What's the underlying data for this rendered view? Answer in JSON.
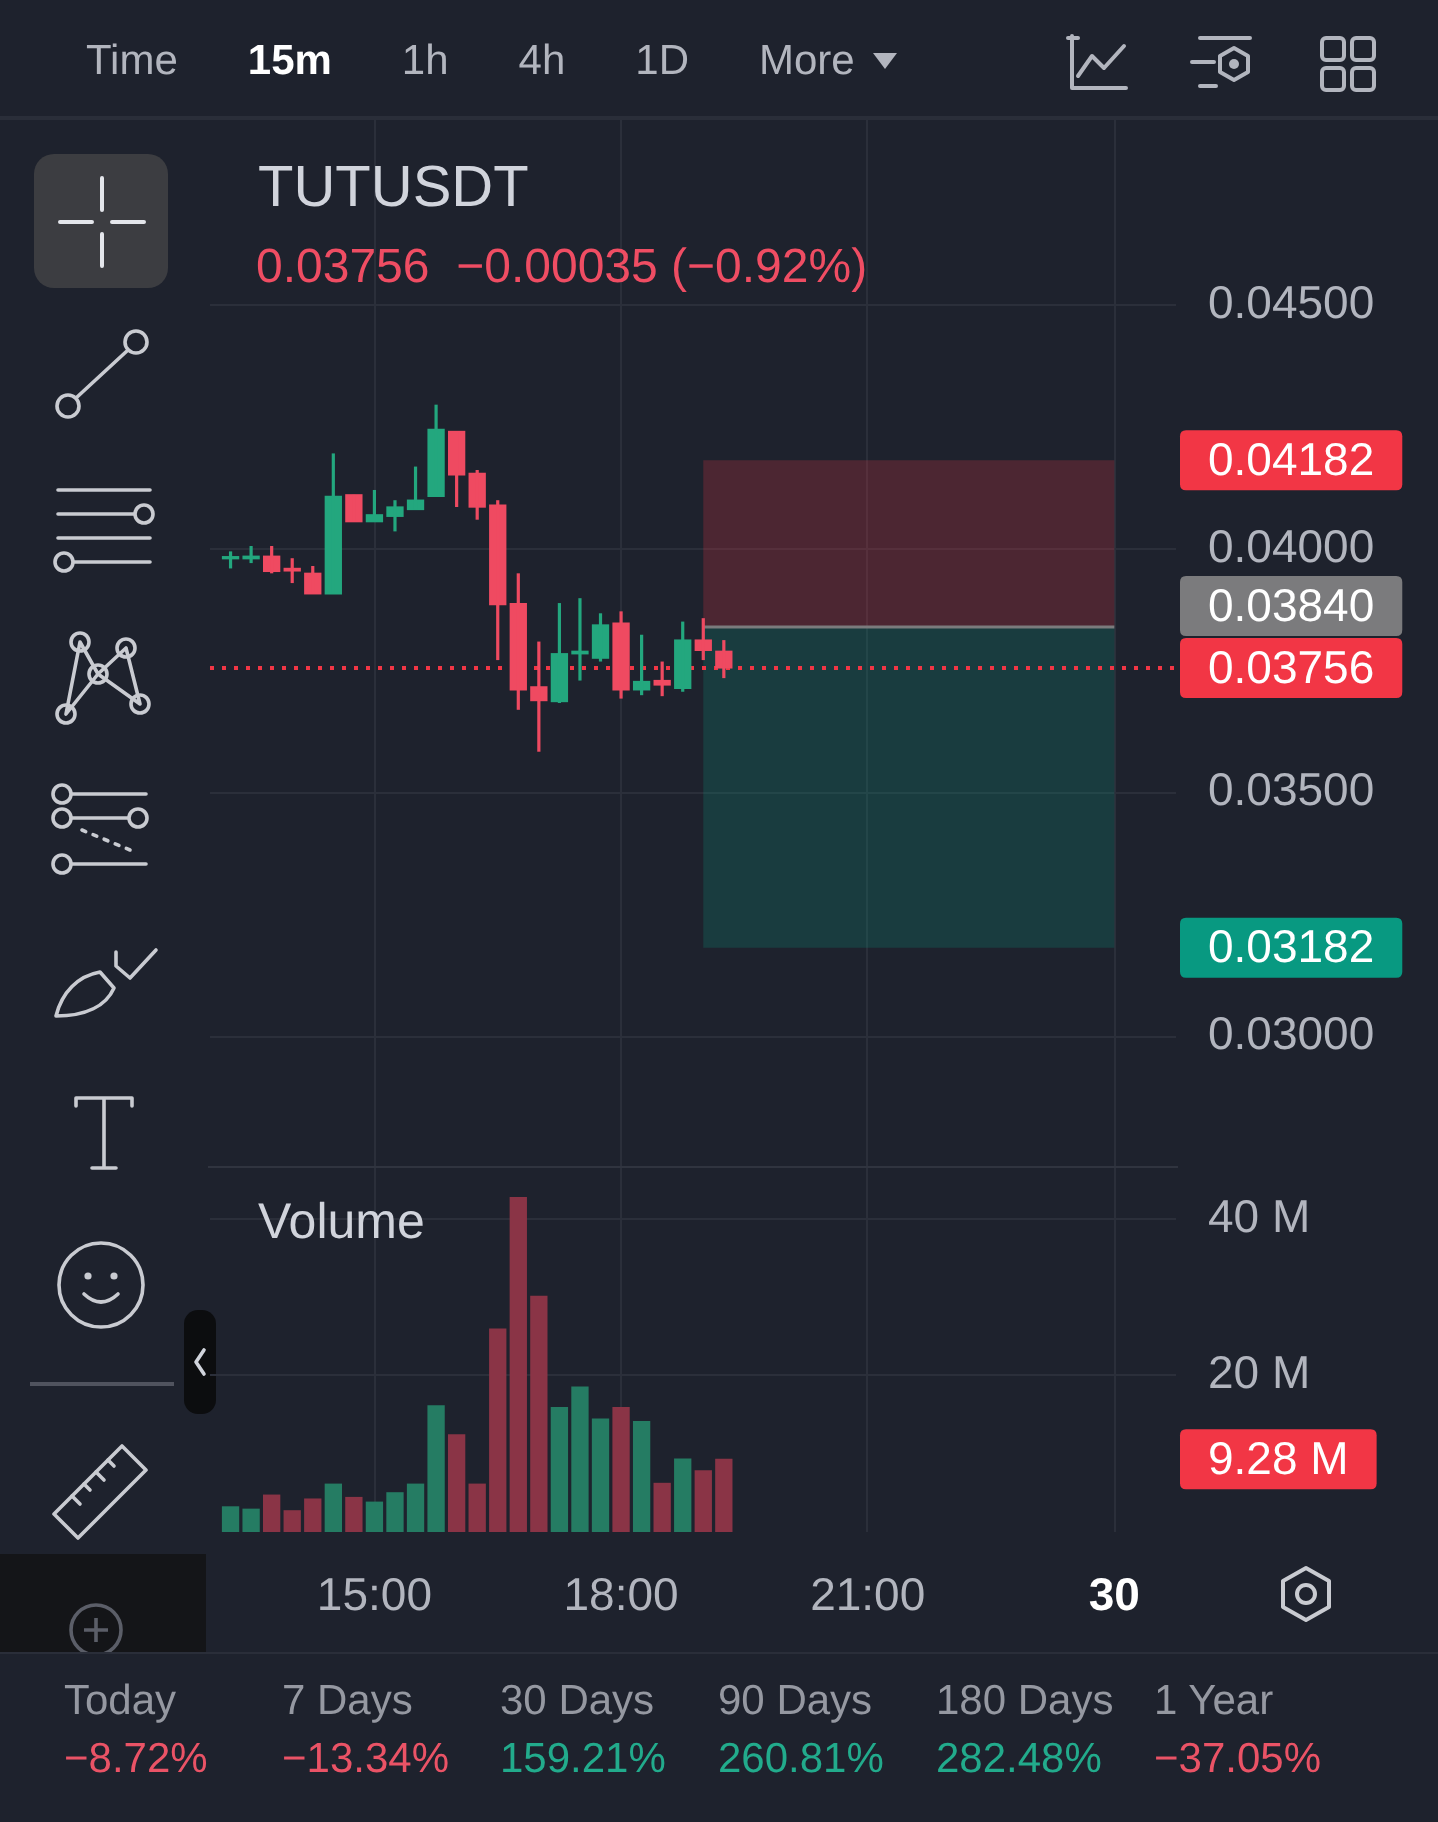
{
  "chart_data": [
    {
      "type": "other",
      "annotations": [
        "Time",
        "15m",
        "1h",
        "4h",
        "1D",
        "More"
      ]
    },
    {
      "type": "candlestick",
      "title": "TUTUSDT",
      "subtitle": "0.03756  −0.00035 (−0.92%)",
      "categories": [
        null,
        null,
        null,
        null,
        null,
        null,
        null,
        null,
        null,
        null,
        null,
        null,
        null,
        null,
        null,
        null,
        null,
        null,
        null,
        null,
        null,
        null,
        null,
        null,
        null,
        null,
        null,
        null,
        null,
        null,
        null,
        null,
        null,
        null,
        null,
        null,
        null,
        null,
        null,
        null,
        null,
        null,
        null,
        null,
        null,
        null,
        null,
        null
      ],
      "ohlc": [
        null,
        [
          0.0398,
          0.03995,
          0.0396,
          0.03982
        ],
        [
          0.0398,
          0.04006,
          0.03971,
          0.03985
        ],
        [
          0.03985,
          0.04006,
          0.0395,
          0.03954
        ],
        [
          0.0396,
          0.03981,
          0.0393,
          0.03955
        ],
        [
          0.0395,
          0.03965,
          0.03908,
          0.03908
        ],
        [
          0.03908,
          0.04196,
          0.03908,
          0.04108
        ],
        [
          0.04111,
          0.04111,
          0.04056,
          0.04056
        ],
        [
          0.04056,
          0.04121,
          0.04056,
          0.0407
        ],
        [
          0.04067,
          0.041,
          0.04036,
          0.04086
        ],
        [
          0.04081,
          0.04169,
          0.04081,
          0.041
        ],
        [
          0.04108,
          0.04296,
          0.04108,
          0.04245
        ],
        [
          0.04241,
          0.04241,
          0.04086,
          0.04152
        ],
        [
          0.04155,
          0.04162,
          0.0406,
          0.04086
        ],
        [
          0.0409,
          0.041,
          0.03772,
          0.03886
        ],
        [
          0.03888,
          0.0395,
          0.0367,
          0.03711
        ],
        [
          0.03717,
          0.0381,
          0.03584,
          0.03689
        ],
        [
          0.03687,
          0.03889,
          0.03684,
          0.03785
        ],
        [
          0.03785,
          0.03899,
          0.0373,
          0.0379
        ],
        [
          0.03776,
          0.03868,
          0.03769,
          0.03844
        ],
        [
          0.03848,
          0.03872,
          0.03693,
          0.03711
        ],
        [
          0.03711,
          0.03824,
          0.037,
          0.03728
        ],
        [
          0.0373,
          0.03769,
          0.03698,
          0.03721
        ],
        [
          0.03714,
          0.03851,
          0.03707,
          0.03813
        ],
        [
          0.03813,
          0.03858,
          0.03772,
          0.03792
        ],
        [
          0.0379,
          0.03813,
          0.03735,
          0.03756
        ],
        null,
        null,
        null,
        null,
        null,
        null,
        null,
        null,
        null,
        null,
        null,
        null,
        null,
        null,
        null,
        null,
        null,
        null,
        null,
        null,
        null,
        null
      ],
      "colors": [
        null,
        "#23a77e",
        "#23a77e",
        "#ef4a61",
        "#ef4a61",
        "#ef4a61",
        "#23a77e",
        "#ef4a61",
        "#23a77e",
        "#23a77e",
        "#23a77e",
        "#23a77e",
        "#ef4a61",
        "#ef4a61",
        "#ef4a61",
        "#ef4a61",
        "#ef4a61",
        "#23a77e",
        "#23a77e",
        "#23a77e",
        "#ef4a61",
        "#23a77e",
        "#ef4a61",
        "#23a77e",
        "#ef4a61",
        "#ef4a61",
        null,
        null,
        null,
        null,
        null,
        null,
        null,
        null,
        null,
        null,
        null,
        null,
        null,
        null,
        null,
        null,
        null,
        null,
        null,
        null,
        null,
        null
      ],
      "ylim": [
        0.0273,
        0.0488
      ],
      "yticks": [
        {
          "value": 0.03,
          "label": "0.03000"
        },
        {
          "value": 0.035,
          "label": "0.03500"
        },
        {
          "value": 0.04,
          "label": "0.04000"
        },
        {
          "value": 0.045,
          "label": "0.04500"
        }
      ],
      "grid": true,
      "tick_labels": "y",
      "ref_lines": [
        {
          "axis": "y",
          "value": 0.0384,
          "label": "0.03840",
          "color": "#7b7b7d",
          "line_style": "solid"
        },
        {
          "axis": "y",
          "value": 0.03756,
          "label": "0.03756",
          "color": "#f23645",
          "line_style": "dotted"
        }
      ],
      "bands": [
        {
          "axis": "y",
          "from": 0.04182,
          "to": 0.0384,
          "label": "0.04182",
          "color": "#f23645"
        },
        {
          "axis": "y",
          "from": 0.03182,
          "to": 0.0384,
          "label": "0.03182",
          "color": "#089981"
        }
      ]
    },
    {
      "type": "bar",
      "title": "Volume",
      "categories": [
        null,
        null,
        null,
        null,
        null,
        null,
        null,
        null,
        "15:00",
        null,
        null,
        null,
        null,
        null,
        null,
        null,
        null,
        null,
        null,
        null,
        "18:00",
        null,
        null,
        null,
        null,
        null,
        null,
        null,
        null,
        null,
        null,
        null,
        "21:00",
        null,
        null,
        null,
        null,
        null,
        null,
        null,
        null,
        null,
        null,
        null,
        "30",
        null,
        null,
        null
      ],
      "values": [
        null,
        3.2,
        2.9,
        4.7,
        2.7,
        4.2,
        6.1,
        4.4,
        3.8,
        5.0,
        6.1,
        16.1,
        12.4,
        6.1,
        25.9,
        42.7,
        30.1,
        15.9,
        18.5,
        14.4,
        15.9,
        14.1,
        6.2,
        9.3,
        7.8,
        9.28,
        null,
        null,
        null,
        null,
        null,
        null,
        null,
        null,
        null,
        null,
        null,
        null,
        null,
        null,
        null,
        null,
        null,
        null,
        null,
        null,
        null,
        null
      ],
      "colors": [
        null,
        "#257c63",
        "#257c63",
        "#8a3446",
        "#8a3446",
        "#8a3446",
        "#257c63",
        "#8a3446",
        "#257c63",
        "#257c63",
        "#257c63",
        "#257c63",
        "#8a3446",
        "#8a3446",
        "#8a3446",
        "#8a3446",
        "#8a3446",
        "#257c63",
        "#257c63",
        "#257c63",
        "#8a3446",
        "#257c63",
        "#8a3446",
        "#257c63",
        "#8a3446",
        "#8a3446",
        null,
        null,
        null,
        null,
        null,
        null,
        null,
        null,
        null,
        null,
        null,
        null,
        null,
        null,
        null,
        null,
        null,
        null,
        null,
        null,
        null,
        null
      ],
      "ylim": [
        0,
        46.5
      ],
      "yticks": [
        {
          "value": 20,
          "label": "20 M"
        },
        {
          "value": 40,
          "label": "40 M"
        }
      ],
      "grid": true,
      "annotations": [
        "9.28 M"
      ]
    },
    {
      "type": "other",
      "annotations": [
        "Today",
        "−8.72%",
        "7 Days",
        "−13.34%",
        "30 Days",
        "159.21%",
        "90 Days",
        "260.81%",
        "180 Days",
        "282.48%",
        "1 Year",
        "−37.05%"
      ]
    }
  ]
}
